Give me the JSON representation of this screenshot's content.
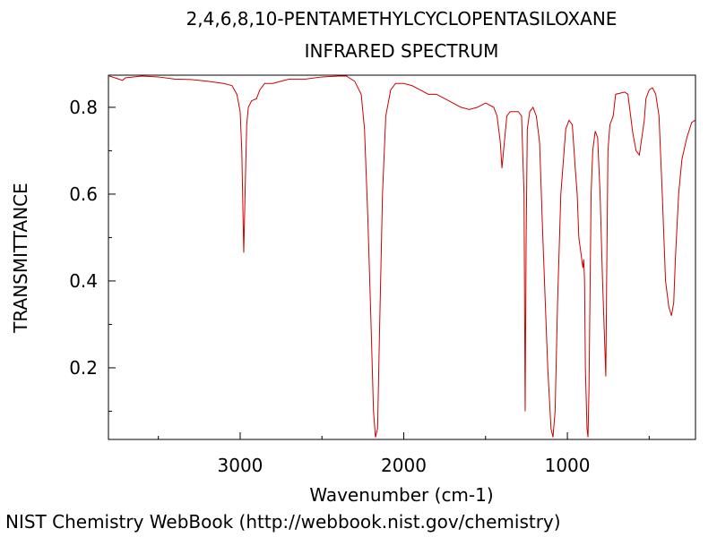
{
  "chart_data": {
    "type": "line",
    "title": "2,4,6,8,10-PENTAMETHYLCYCLOPENTASILOXANE",
    "subtitle": "INFRARED SPECTRUM",
    "x_label": "Wavenumber (cm-1)",
    "y_label": "TRANSMITTANCE",
    "footer": "NIST Chemistry WebBook (http://webbook.nist.gov/chemistry)",
    "xlim": [
      3805,
      217
    ],
    "ylim": [
      0.035,
      0.874
    ],
    "xticks": [
      3000,
      2000,
      1000
    ],
    "yticks": [
      0.2,
      0.4,
      0.6,
      0.8
    ],
    "xminorticks": [
      3500,
      2500,
      1500,
      500
    ],
    "yminorticks": [
      0.1,
      0.3,
      0.5,
      0.7
    ],
    "color": "#cc0000",
    "x": [
      3800,
      3750,
      3720,
      3700,
      3600,
      3500,
      3400,
      3300,
      3200,
      3100,
      3050,
      3020,
      3000,
      2990,
      2985,
      2978,
      2970,
      2960,
      2950,
      2930,
      2900,
      2880,
      2850,
      2800,
      2750,
      2700,
      2600,
      2500,
      2400,
      2350,
      2300,
      2260,
      2240,
      2220,
      2200,
      2185,
      2173,
      2160,
      2150,
      2130,
      2110,
      2080,
      2050,
      2000,
      1950,
      1900,
      1850,
      1800,
      1750,
      1700,
      1650,
      1600,
      1550,
      1500,
      1450,
      1430,
      1410,
      1400,
      1390,
      1370,
      1350,
      1300,
      1280,
      1265,
      1258,
      1252,
      1245,
      1230,
      1210,
      1190,
      1170,
      1150,
      1120,
      1100,
      1088,
      1075,
      1060,
      1040,
      1010,
      990,
      970,
      950,
      940,
      930,
      905,
      900,
      895,
      890,
      880,
      874,
      868,
      855,
      845,
      830,
      815,
      800,
      785,
      765,
      760,
      752,
      740,
      720,
      705,
      650,
      630,
      600,
      580,
      560,
      545,
      530,
      520,
      500,
      480,
      460,
      440,
      420,
      400,
      380,
      364,
      350,
      340,
      320,
      300,
      270,
      240,
      220
    ],
    "values": [
      0.872,
      0.866,
      0.862,
      0.868,
      0.872,
      0.87,
      0.865,
      0.864,
      0.86,
      0.855,
      0.85,
      0.83,
      0.79,
      0.7,
      0.6,
      0.465,
      0.6,
      0.76,
      0.8,
      0.815,
      0.82,
      0.84,
      0.855,
      0.855,
      0.86,
      0.865,
      0.865,
      0.87,
      0.872,
      0.872,
      0.86,
      0.83,
      0.75,
      0.55,
      0.3,
      0.1,
      0.04,
      0.06,
      0.25,
      0.6,
      0.78,
      0.84,
      0.855,
      0.855,
      0.85,
      0.84,
      0.83,
      0.83,
      0.82,
      0.81,
      0.8,
      0.795,
      0.8,
      0.81,
      0.8,
      0.78,
      0.72,
      0.66,
      0.7,
      0.78,
      0.79,
      0.79,
      0.78,
      0.6,
      0.1,
      0.5,
      0.75,
      0.79,
      0.8,
      0.78,
      0.72,
      0.5,
      0.2,
      0.06,
      0.04,
      0.1,
      0.35,
      0.6,
      0.75,
      0.77,
      0.76,
      0.65,
      0.6,
      0.5,
      0.43,
      0.45,
      0.4,
      0.2,
      0.06,
      0.04,
      0.15,
      0.6,
      0.7,
      0.745,
      0.73,
      0.6,
      0.4,
      0.18,
      0.4,
      0.7,
      0.76,
      0.78,
      0.83,
      0.835,
      0.83,
      0.74,
      0.7,
      0.69,
      0.73,
      0.77,
      0.82,
      0.84,
      0.845,
      0.83,
      0.78,
      0.6,
      0.4,
      0.34,
      0.32,
      0.35,
      0.45,
      0.6,
      0.68,
      0.73,
      0.765,
      0.77
    ]
  }
}
